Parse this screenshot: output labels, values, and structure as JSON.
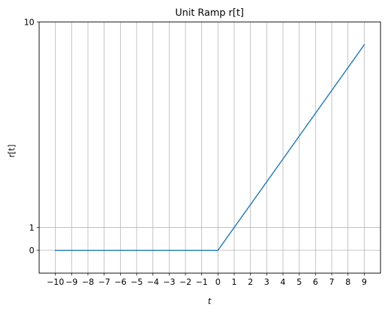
{
  "chart_data": {
    "type": "line",
    "title": "Unit Ramp r[t]",
    "xlabel": "t",
    "ylabel": "r[t]",
    "xlim": [
      -11,
      10
    ],
    "ylim": [
      -1,
      10
    ],
    "x_ticks": [
      -10,
      -9,
      -8,
      -7,
      -6,
      -5,
      -4,
      -3,
      -2,
      -1,
      0,
      1,
      2,
      3,
      4,
      5,
      6,
      7,
      8,
      9
    ],
    "x_tick_labels": [
      "−10",
      "−9",
      "−8",
      "−7",
      "−6",
      "−5",
      "−4",
      "−3",
      "−2",
      "−1",
      "0",
      "1",
      "2",
      "3",
      "4",
      "5",
      "6",
      "7",
      "8",
      "9"
    ],
    "y_ticks": [
      0,
      1,
      10
    ],
    "y_tick_labels": [
      "0",
      "1",
      "10"
    ],
    "grid": true,
    "series": [
      {
        "color": "#1f77b4",
        "x": [
          -10,
          -9,
          -8,
          -7,
          -6,
          -5,
          -4,
          -3,
          -2,
          -1,
          0,
          1,
          2,
          3,
          4,
          5,
          6,
          7,
          8,
          9
        ],
        "y": [
          0,
          0,
          0,
          0,
          0,
          0,
          0,
          0,
          0,
          0,
          0,
          1,
          2,
          3,
          4,
          5,
          6,
          7,
          8,
          9
        ]
      }
    ],
    "colors": {
      "line": "#1f77b4",
      "grid": "#b0b0b0",
      "axes": "#000000"
    }
  }
}
